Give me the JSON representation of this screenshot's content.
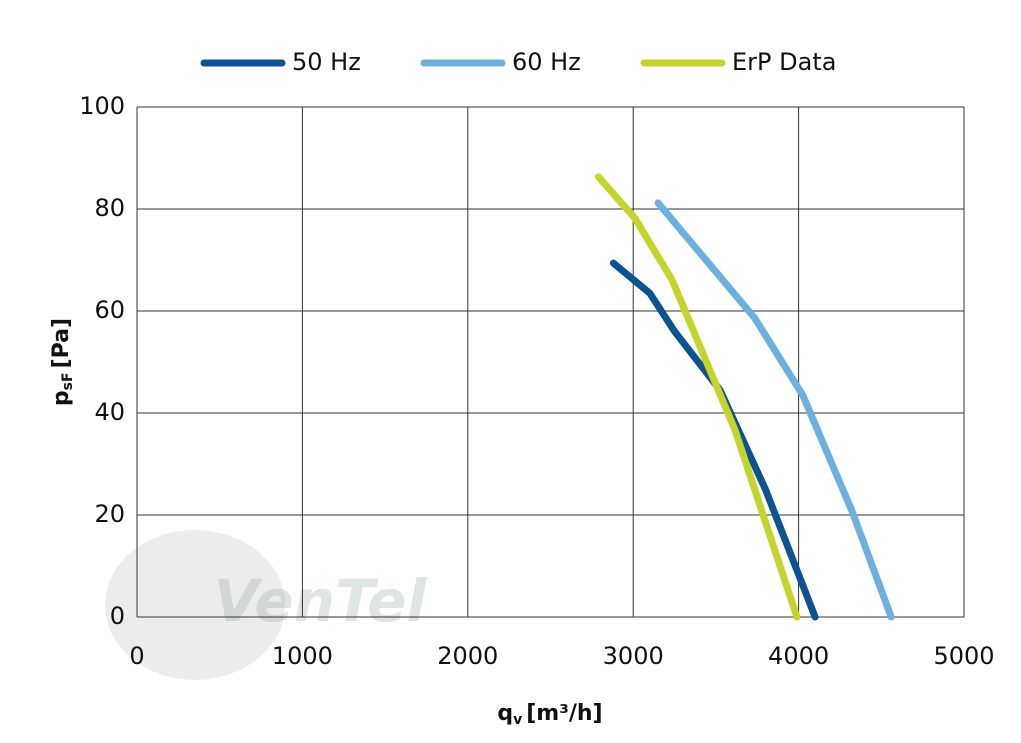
{
  "chart_data": {
    "type": "line",
    "xlabel": "q",
    "xlabel_sub": "v",
    "xlabel_unit": "[m³/h]",
    "ylabel": "p",
    "ylabel_sub": "sF",
    "ylabel_unit": "[Pa]",
    "watermark": "VenTel",
    "xlim": [
      0,
      5000
    ],
    "xticks": [
      0,
      1000,
      2000,
      3000,
      4000,
      5000
    ],
    "ylim": [
      0,
      100
    ],
    "yticks": [
      0,
      20,
      40,
      60,
      80,
      100
    ],
    "grid": true,
    "legend": "top",
    "series": [
      {
        "name": "50 Hz",
        "color": "#0d5391",
        "x": [
          2880,
          3100,
          3250,
          3525,
          3800,
          4100
        ],
        "values": [
          69.4,
          63.5,
          56,
          44.5,
          25,
          0
        ]
      },
      {
        "name": "60 Hz",
        "color": "#6cb0e0",
        "x": [
          3150,
          3735,
          4025,
          4325,
          4560
        ],
        "values": [
          81.2,
          58.6,
          43.5,
          20.6,
          0
        ]
      },
      {
        "name": "ErP Data",
        "color": "#c4d42a",
        "x": [
          2790,
          3010,
          3235,
          3615,
          3990
        ],
        "values": [
          86.3,
          78.2,
          66.1,
          36.7,
          0
        ]
      }
    ]
  }
}
